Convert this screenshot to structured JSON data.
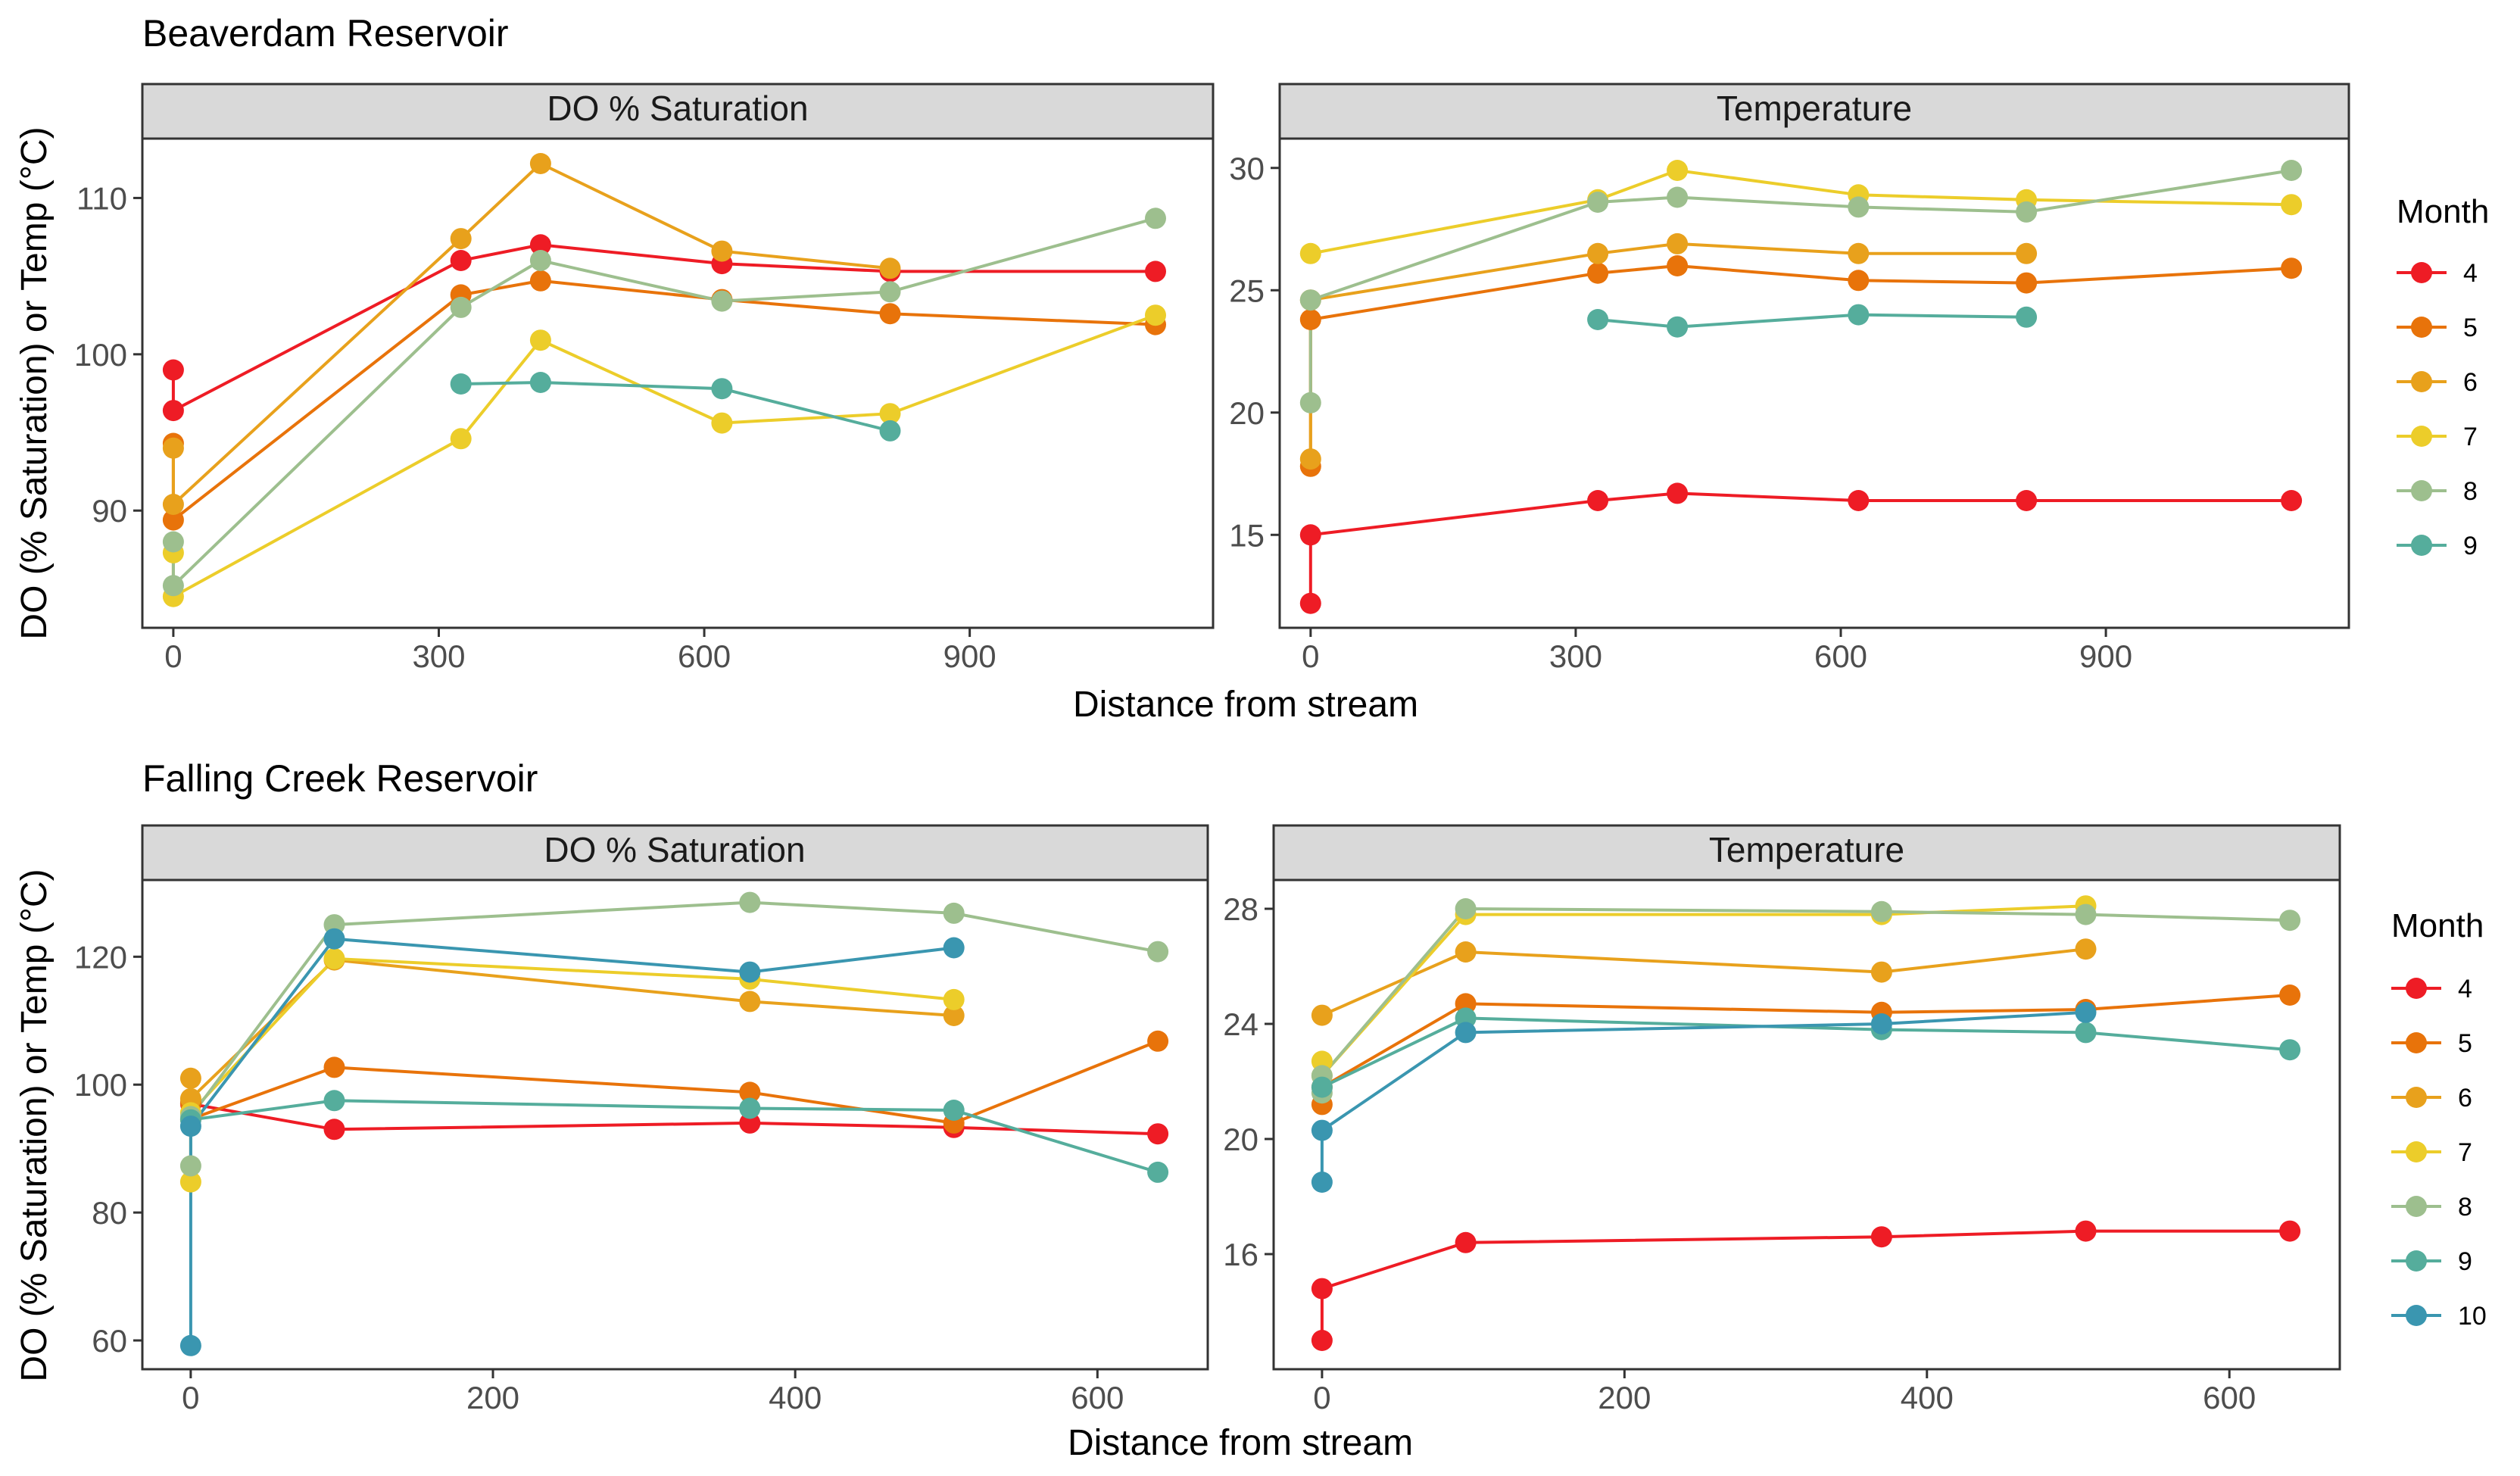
{
  "rows": [
    {
      "title": "Beaverdam Reservoir",
      "x_axis_label": "Distance from stream",
      "y_axis_label": "DO (% Saturation) or Temp (°C)",
      "legend": {
        "title": "Month",
        "items": [
          "4",
          "5",
          "6",
          "7",
          "8",
          "9"
        ]
      }
    },
    {
      "title": "Falling Creek Reservoir",
      "x_axis_label": "Distance from stream",
      "y_axis_label": "DO (% Saturation) or Temp (°C)",
      "legend": {
        "title": "Month",
        "items": [
          "4",
          "5",
          "6",
          "7",
          "8",
          "9",
          "10"
        ]
      }
    }
  ],
  "month_colors": {
    "4": "#ee1c25",
    "5": "#e8730a",
    "6": "#e8a11c",
    "7": "#eccd2a",
    "8": "#9dbf8e",
    "9": "#55ad9c",
    "10": "#3a96b0"
  },
  "chart_data": [
    {
      "type": "line",
      "title": "Beaverdam Reservoir",
      "facet": "DO % Saturation",
      "xlabel": "Distance from stream",
      "ylabel": "DO (% Saturation) or Temp (°C)",
      "xlim": [
        -35,
        1175
      ],
      "ylim": [
        82.5,
        113.8
      ],
      "xticks": [
        0,
        300,
        600,
        900
      ],
      "yticks": [
        90,
        100,
        110
      ],
      "series": [
        {
          "name": "4",
          "points": [
            [
              0,
              99
            ],
            [
              0,
              96.4
            ],
            [
              325,
              106
            ],
            [
              415,
              107
            ],
            [
              620,
              105.8
            ],
            [
              810,
              105.3
            ],
            [
              1110,
              105.3
            ]
          ]
        },
        {
          "name": "5",
          "points": [
            [
              0,
              94.3
            ],
            [
              0,
              89.4
            ],
            [
              325,
              103.8
            ],
            [
              415,
              104.7
            ],
            [
              620,
              103.5
            ],
            [
              810,
              102.6
            ],
            [
              1110,
              101.9
            ]
          ]
        },
        {
          "name": "6",
          "points": [
            [
              0,
              94
            ],
            [
              0,
              90.4
            ],
            [
              325,
              107.4
            ],
            [
              415,
              112.2
            ],
            [
              620,
              106.6
            ],
            [
              810,
              105.5
            ]
          ]
        },
        {
          "name": "7",
          "points": [
            [
              0,
              87.3
            ],
            [
              0,
              84.5
            ],
            [
              325,
              94.6
            ],
            [
              415,
              100.9
            ],
            [
              620,
              95.6
            ],
            [
              810,
              96.2
            ],
            [
              1110,
              102.5
            ]
          ]
        },
        {
          "name": "8",
          "points": [
            [
              0,
              88
            ],
            [
              0,
              85.2
            ],
            [
              325,
              103
            ],
            [
              415,
              106
            ],
            [
              620,
              103.4
            ],
            [
              810,
              104
            ],
            [
              1110,
              108.7
            ]
          ]
        },
        {
          "name": "9",
          "points": [
            [
              325,
              98.1
            ],
            [
              415,
              98.2
            ],
            [
              620,
              97.8
            ],
            [
              810,
              95.1
            ]
          ]
        }
      ]
    },
    {
      "type": "line",
      "title": "Beaverdam Reservoir",
      "facet": "Temperature",
      "xlabel": "Distance from stream",
      "ylabel": "DO (% Saturation) or Temp (°C)",
      "xlim": [
        -35,
        1175
      ],
      "ylim": [
        11.2,
        31.2
      ],
      "xticks": [
        0,
        300,
        600,
        900
      ],
      "yticks": [
        15,
        20,
        25,
        30
      ],
      "series": [
        {
          "name": "4",
          "points": [
            [
              0,
              12.2
            ],
            [
              0,
              15
            ],
            [
              325,
              16.4
            ],
            [
              415,
              16.7
            ],
            [
              620,
              16.4
            ],
            [
              810,
              16.4
            ],
            [
              1110,
              16.4
            ]
          ]
        },
        {
          "name": "5",
          "points": [
            [
              0,
              17.8
            ],
            [
              0,
              23.8
            ],
            [
              325,
              25.7
            ],
            [
              415,
              26
            ],
            [
              620,
              25.4
            ],
            [
              810,
              25.3
            ],
            [
              1110,
              25.9
            ]
          ]
        },
        {
          "name": "6",
          "points": [
            [
              0,
              18.1
            ],
            [
              0,
              24.6
            ],
            [
              325,
              26.5
            ],
            [
              415,
              26.9
            ],
            [
              620,
              26.5
            ],
            [
              810,
              26.5
            ]
          ]
        },
        {
          "name": "7",
          "points": [
            [
              0,
              26.5
            ],
            [
              325,
              28.7
            ],
            [
              415,
              29.9
            ],
            [
              620,
              28.9
            ],
            [
              810,
              28.7
            ],
            [
              1110,
              28.5
            ]
          ]
        },
        {
          "name": "8",
          "points": [
            [
              0,
              20.4
            ],
            [
              0,
              24.6
            ],
            [
              325,
              28.6
            ],
            [
              415,
              28.8
            ],
            [
              620,
              28.4
            ],
            [
              810,
              28.2
            ],
            [
              1110,
              29.9
            ]
          ]
        },
        {
          "name": "9",
          "points": [
            [
              325,
              23.8
            ],
            [
              415,
              23.5
            ],
            [
              620,
              24
            ],
            [
              810,
              23.9
            ]
          ]
        }
      ]
    },
    {
      "type": "line",
      "title": "Falling Creek Reservoir",
      "facet": "DO % Saturation",
      "xlabel": "Distance from stream",
      "ylabel": "DO (% Saturation) or Temp (°C)",
      "xlim": [
        -32,
        673
      ],
      "ylim": [
        55.5,
        132
      ],
      "xticks": [
        0,
        200,
        400,
        600
      ],
      "yticks": [
        60,
        80,
        100,
        120
      ],
      "series": [
        {
          "name": "4",
          "points": [
            [
              0,
              97
            ],
            [
              95,
              93
            ],
            [
              370,
              94
            ],
            [
              505,
              93.3
            ],
            [
              640,
              92.3
            ]
          ]
        },
        {
          "name": "5",
          "points": [
            [
              0,
              97.2
            ],
            [
              0,
              94.6
            ],
            [
              95,
              102.7
            ],
            [
              370,
              98.8
            ],
            [
              505,
              94
            ],
            [
              640,
              106.8
            ]
          ]
        },
        {
          "name": "6",
          "points": [
            [
              0,
              101
            ],
            [
              0,
              97.8
            ],
            [
              95,
              119.5
            ],
            [
              370,
              113
            ],
            [
              505,
              110.8
            ]
          ]
        },
        {
          "name": "7",
          "points": [
            [
              0,
              84.8
            ],
            [
              0,
              95.6
            ],
            [
              95,
              119.7
            ],
            [
              370,
              116.5
            ],
            [
              505,
              113.3
            ]
          ]
        },
        {
          "name": "8",
          "points": [
            [
              0,
              87.3
            ],
            [
              0,
              95
            ],
            [
              95,
              125
            ],
            [
              370,
              128.5
            ],
            [
              505,
              126.8
            ],
            [
              640,
              120.8
            ]
          ]
        },
        {
          "name": "9",
          "points": [
            [
              0,
              94.5
            ],
            [
              95,
              97.5
            ],
            [
              370,
              96.3
            ],
            [
              505,
              96
            ],
            [
              640,
              86.3
            ]
          ]
        },
        {
          "name": "10",
          "points": [
            [
              0,
              59.2
            ],
            [
              0,
              93.5
            ],
            [
              95,
              122.8
            ],
            [
              370,
              117.6
            ],
            [
              505,
              121.4
            ]
          ]
        }
      ]
    },
    {
      "type": "line",
      "title": "Falling Creek Reservoir",
      "facet": "Temperature",
      "xlabel": "Distance from stream",
      "ylabel": "DO (% Saturation) or Temp (°C)",
      "xlim": [
        -32,
        673
      ],
      "ylim": [
        12,
        29
      ],
      "xticks": [
        0,
        200,
        400,
        600
      ],
      "yticks": [
        16,
        20,
        24,
        28
      ],
      "series": [
        {
          "name": "4",
          "points": [
            [
              0,
              13
            ],
            [
              0,
              14.8
            ],
            [
              95,
              16.4
            ],
            [
              370,
              16.6
            ],
            [
              505,
              16.8
            ],
            [
              640,
              16.8
            ]
          ]
        },
        {
          "name": "5",
          "points": [
            [
              0,
              21.2
            ],
            [
              0,
              21.8
            ],
            [
              95,
              24.7
            ],
            [
              370,
              24.4
            ],
            [
              505,
              24.5
            ],
            [
              640,
              25
            ]
          ]
        },
        {
          "name": "6",
          "points": [
            [
              0,
              24.3
            ],
            [
              95,
              26.5
            ],
            [
              370,
              25.8
            ],
            [
              505,
              26.6
            ]
          ]
        },
        {
          "name": "7",
          "points": [
            [
              0,
              22.7
            ],
            [
              0,
              22.2
            ],
            [
              95,
              27.8
            ],
            [
              370,
              27.8
            ],
            [
              505,
              28.1
            ]
          ]
        },
        {
          "name": "8",
          "points": [
            [
              0,
              21.6
            ],
            [
              0,
              22.2
            ],
            [
              95,
              28
            ],
            [
              370,
              27.9
            ],
            [
              505,
              27.8
            ],
            [
              640,
              27.6
            ]
          ]
        },
        {
          "name": "9",
          "points": [
            [
              0,
              21.8
            ],
            [
              95,
              24.2
            ],
            [
              370,
              23.8
            ],
            [
              505,
              23.7
            ],
            [
              640,
              23.1
            ]
          ]
        },
        {
          "name": "10",
          "points": [
            [
              0,
              18.5
            ],
            [
              0,
              20.3
            ],
            [
              95,
              23.7
            ],
            [
              370,
              24
            ],
            [
              505,
              24.4
            ]
          ]
        }
      ]
    }
  ]
}
